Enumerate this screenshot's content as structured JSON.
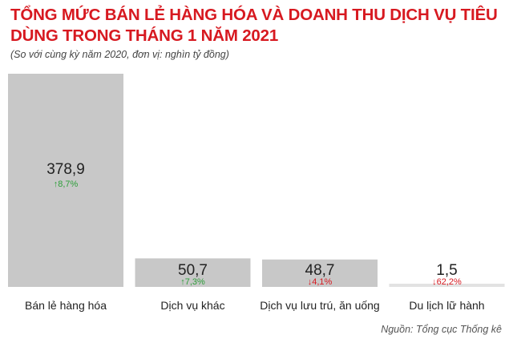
{
  "header": {
    "title": "TỔNG MỨC BÁN LẺ HÀNG HÓA VÀ DOANH THU DỊCH VỤ TIÊU DÙNG TRONG THÁNG 1 NĂM 2021",
    "subtitle": "(So với cùng kỳ năm 2020, đơn vị: nghìn tỷ đồng)"
  },
  "footer": {
    "source": "Nguồn: Tổng cục Thống kê"
  },
  "colors": {
    "bar": "#c8c8c8",
    "bar_light": "#e2e2e2",
    "up": "#2e9e3a",
    "down": "#d71920"
  },
  "chart_data": {
    "type": "bar",
    "title": "TỔNG MỨC BÁN LẺ HÀNG HÓA VÀ DOANH THU DỊCH VỤ TIÊU DÙNG TRONG THÁNG 1 NĂM 2021",
    "subtitle": "(So với cùng kỳ năm 2020, đơn vị: nghìn tỷ đồng)",
    "categories": [
      "Bán lẻ hàng hóa",
      "Dịch vụ khác",
      "Dịch vụ lưu trú, ăn uống",
      "Du lịch lữ hành"
    ],
    "values": [
      378.9,
      50.7,
      48.7,
      1.5
    ],
    "value_labels": [
      "378,9",
      "50,7",
      "48,7",
      "1,5"
    ],
    "changes": [
      8.7,
      7.3,
      -4.1,
      -62.2
    ],
    "change_labels": [
      "↑8,7%",
      "↑7,3%",
      "↓4,1%",
      "↓62,2%"
    ],
    "xlabel": "",
    "ylabel": "",
    "ylim": [
      0,
      378.9
    ],
    "grid": false,
    "legend": "none"
  }
}
